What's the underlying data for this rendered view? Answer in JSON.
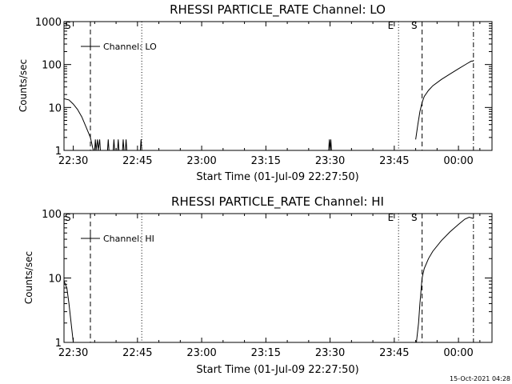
{
  "chart_data": [
    {
      "type": "line",
      "title": "RHESSI PARTICLE_RATE Channel: LO",
      "xlabel": "Start Time (01-Jul-09 22:27:50)",
      "ylabel": "Counts/sec",
      "y_scale": "log",
      "ylim": [
        1,
        1000
      ],
      "xlim": [
        "22:27:50",
        "00:07:50"
      ],
      "x_ticks": [
        "22:30",
        "22:45",
        "23:00",
        "23:15",
        "23:30",
        "23:45",
        "00:00"
      ],
      "y_ticks": [
        "1",
        "10",
        "100",
        "1000"
      ],
      "legend": {
        "position": "top-left",
        "label": "Channel: LO"
      },
      "markers": [
        {
          "time": "22:27:50",
          "style": "solid",
          "label": "S"
        },
        {
          "time": "22:34:00",
          "style": "dashed",
          "label": ""
        },
        {
          "time": "22:46:00",
          "style": "dotted",
          "label": ""
        },
        {
          "time": "23:46:00",
          "style": "dotted",
          "label": "E"
        },
        {
          "time": "23:51:30",
          "style": "dashed",
          "label": "S"
        },
        {
          "time": "00:03:30",
          "style": "dashdot",
          "label": ""
        }
      ],
      "series": [
        {
          "segments": [
            [
              [
                "22:27:50",
                16
              ],
              [
                "22:29:00",
                15
              ],
              [
                "22:30:00",
                12
              ],
              [
                "22:31:00",
                9
              ],
              [
                "22:32:00",
                6
              ],
              [
                "22:33:00",
                3.5
              ],
              [
                "22:34:00",
                2
              ],
              [
                "22:34:40",
                1
              ]
            ],
            [
              [
                "22:35:00",
                1
              ],
              [
                "22:35:10",
                1.8
              ],
              [
                "22:35:20",
                1
              ],
              [
                "22:35:40",
                1.8
              ],
              [
                "22:35:50",
                1
              ],
              [
                "22:36:10",
                1.8
              ],
              [
                "22:36:20",
                1
              ]
            ],
            [
              [
                "22:38:00",
                1
              ],
              [
                "22:38:10",
                1.8
              ],
              [
                "22:38:20",
                1
              ],
              [
                "22:39:20",
                1
              ],
              [
                "22:39:30",
                1.8
              ],
              [
                "22:39:40",
                1
              ],
              [
                "22:40:20",
                1
              ],
              [
                "22:40:30",
                1.8
              ],
              [
                "22:40:40",
                1
              ],
              [
                "22:41:30",
                1
              ],
              [
                "22:41:40",
                1.8
              ],
              [
                "22:41:50",
                1
              ],
              [
                "22:42:10",
                1
              ],
              [
                "22:42:20",
                1.8
              ],
              [
                "22:42:30",
                1
              ]
            ],
            [
              [
                "22:45:40",
                1
              ],
              [
                "22:45:50",
                1.8
              ],
              [
                "22:46:00",
                1
              ]
            ],
            [
              [
                "23:29:40",
                1
              ],
              [
                "23:29:50",
                1.8
              ],
              [
                "23:30:00",
                1
              ],
              [
                "23:30:10",
                1.8
              ],
              [
                "23:30:20",
                1
              ]
            ],
            [
              [
                "23:50:00",
                1.8
              ],
              [
                "23:50:30",
                4
              ],
              [
                "23:51:00",
                8
              ],
              [
                "23:51:30",
                13
              ],
              [
                "23:52:00",
                18
              ],
              [
                "23:53:00",
                25
              ],
              [
                "23:54:00",
                32
              ],
              [
                "23:56:00",
                45
              ],
              [
                "23:58:00",
                60
              ],
              [
                "00:00:00",
                80
              ],
              [
                "00:02:00",
                105
              ],
              [
                "00:03:00",
                120
              ],
              [
                "00:03:30",
                120
              ]
            ]
          ]
        }
      ]
    },
    {
      "type": "line",
      "title": "RHESSI PARTICLE_RATE Channel: HI",
      "xlabel": "Start Time (01-Jul-09 22:27:50)",
      "ylabel": "Counts/sec",
      "y_scale": "log",
      "ylim": [
        1,
        100
      ],
      "xlim": [
        "22:27:50",
        "00:07:50"
      ],
      "x_ticks": [
        "22:30",
        "22:45",
        "23:00",
        "23:15",
        "23:30",
        "23:45",
        "00:00"
      ],
      "y_ticks": [
        "1",
        "10",
        "100"
      ],
      "legend": {
        "position": "top-left",
        "label": "Channel: HI"
      },
      "markers": [
        {
          "time": "22:27:50",
          "style": "solid",
          "label": "S"
        },
        {
          "time": "22:34:00",
          "style": "dashed",
          "label": ""
        },
        {
          "time": "22:46:00",
          "style": "dotted",
          "label": ""
        },
        {
          "time": "23:46:00",
          "style": "dotted",
          "label": "E"
        },
        {
          "time": "23:51:30",
          "style": "dashed",
          "label": "S"
        },
        {
          "time": "00:03:30",
          "style": "dashdot",
          "label": ""
        }
      ],
      "series": [
        {
          "segments": [
            [
              [
                "22:27:50",
                9
              ],
              [
                "22:28:30",
                7
              ],
              [
                "22:29:00",
                4
              ],
              [
                "22:29:30",
                2
              ],
              [
                "22:30:00",
                1
              ]
            ],
            [
              [
                "23:50:10",
                1
              ],
              [
                "23:50:40",
                2
              ],
              [
                "23:51:00",
                4
              ],
              [
                "23:51:30",
                10
              ],
              [
                "23:52:00",
                14
              ],
              [
                "23:53:00",
                20
              ],
              [
                "23:54:00",
                26
              ],
              [
                "23:56:00",
                38
              ],
              [
                "23:58:00",
                52
              ],
              [
                "00:00:00",
                68
              ],
              [
                "00:01:30",
                82
              ],
              [
                "00:02:30",
                88
              ],
              [
                "00:03:30",
                84
              ]
            ]
          ]
        }
      ]
    }
  ],
  "footer": {
    "timestamp": "15-Oct-2021 04:28"
  }
}
